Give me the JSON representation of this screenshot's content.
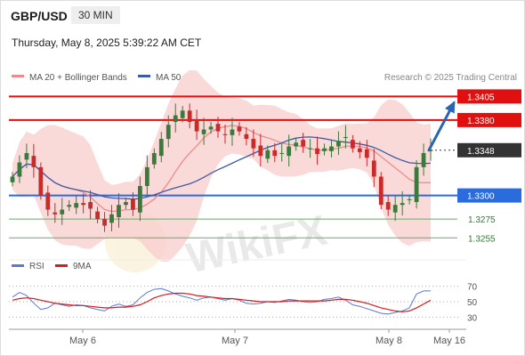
{
  "header": {
    "symbol": "GBP/USD",
    "timeframe": "30 MIN",
    "datetime": "Thursday, May 8, 2025 5:39:22 AM CET"
  },
  "legend": {
    "ma20": "MA 20 + Bollinger Bands",
    "ma50": "MA 50",
    "credit": "Research © 2025 Trading Central"
  },
  "colors": {
    "price_up": "#3a7a3a",
    "price_down": "#c92a2a",
    "resistance": "#e01010",
    "support": "#2a6cdb",
    "minor_support": "#6aa86a",
    "current": "#333333",
    "ma20": "#ef8b8b",
    "ma50": "#3d5aa8",
    "bollinger_fill": "#f8cccc",
    "rsi": "#5b78d4",
    "rsi_ma": "#d81c1c",
    "arrow": "#2a64b4"
  },
  "chart_data": [
    {
      "type": "candlestick",
      "title": "GBP/USD",
      "timeframe": "30 MIN",
      "ylim": [
        1.3243,
        1.3412
      ],
      "x_ticks": [
        "May 6",
        "May 7",
        "May 8",
        "May 16"
      ],
      "close_approx": [
        1.332,
        1.3335,
        1.3345,
        1.333,
        1.33,
        1.3285,
        1.328,
        1.3285,
        1.329,
        1.3292,
        1.329,
        1.3286,
        1.3275,
        1.3268,
        1.328,
        1.329,
        1.3293,
        1.3285,
        1.331,
        1.333,
        1.3345,
        1.336,
        1.3375,
        1.3385,
        1.339,
        1.3378,
        1.3368,
        1.337,
        1.3373,
        1.3368,
        1.3364,
        1.337,
        1.3368,
        1.336,
        1.335,
        1.3342,
        1.3348,
        1.3342,
        1.3345,
        1.3352,
        1.3356,
        1.3352,
        1.335,
        1.3344,
        1.335,
        1.3352,
        1.3358,
        1.3362,
        1.335,
        1.3346,
        1.334,
        1.332,
        1.329,
        1.3285,
        1.329,
        1.3292,
        1.3296,
        1.333,
        1.3345,
        1.3348
      ],
      "levels": [
        {
          "label": "1.3405",
          "value": 1.3405,
          "kind": "resistance"
        },
        {
          "label": "1.3380",
          "value": 1.338,
          "kind": "resistance"
        },
        {
          "label": "1.3348",
          "value": 1.3348,
          "kind": "current"
        },
        {
          "label": "1.3300",
          "value": 1.33,
          "kind": "support"
        },
        {
          "label": "1.3275",
          "value": 1.3275,
          "kind": "minor_support"
        },
        {
          "label": "1.3255",
          "value": 1.3255,
          "kind": "minor_support"
        }
      ],
      "forecast_arrow": {
        "from": 1.3348,
        "to": 1.3398,
        "direction": "up"
      },
      "indicators": [
        "MA 20 + Bollinger Bands",
        "MA 50"
      ],
      "watermark": "WikiFX"
    },
    {
      "type": "line",
      "legend": [
        "RSI",
        "9MA"
      ],
      "ylim": [
        20,
        80
      ],
      "y_ticks": [
        70,
        50,
        30
      ],
      "rsi_approx": [
        56,
        62,
        58,
        48,
        40,
        42,
        48,
        46,
        44,
        46,
        45,
        42,
        40,
        38,
        44,
        47,
        44,
        46,
        55,
        62,
        66,
        67,
        64,
        60,
        57,
        55,
        52,
        55,
        56,
        54,
        52,
        54,
        52,
        48,
        47,
        48,
        50,
        49,
        51,
        53,
        52,
        50,
        49,
        50,
        53,
        54,
        56,
        52,
        46,
        44,
        41,
        38,
        35,
        34,
        36,
        38,
        42,
        60,
        64,
        64
      ],
      "ma9_approx": [
        52,
        54,
        55,
        54,
        52,
        50,
        48,
        47,
        46,
        45,
        45,
        44,
        43,
        42,
        42,
        43,
        43,
        44,
        46,
        50,
        55,
        58,
        60,
        61,
        61,
        60,
        58,
        57,
        56,
        55,
        54,
        54,
        53,
        52,
        51,
        50,
        50,
        50,
        50,
        51,
        51,
        51,
        51,
        51,
        51,
        52,
        53,
        53,
        52,
        50,
        48,
        45,
        42,
        40,
        38,
        37,
        38,
        42,
        47,
        52
      ]
    }
  ]
}
